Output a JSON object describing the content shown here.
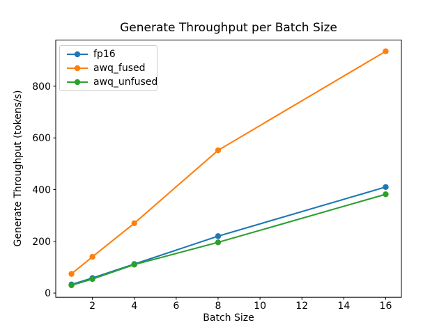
{
  "chart_data": {
    "type": "line",
    "title": "Generate Throughput per Batch Size",
    "xlabel": "Batch Size",
    "ylabel": "Generate Throughput (tokens/s)",
    "x": [
      1,
      2,
      4,
      8,
      16
    ],
    "series": [
      {
        "name": "fp16",
        "color": "#1f77b4",
        "values": [
          33,
          58,
          112,
          220,
          410
        ]
      },
      {
        "name": "awq_fused",
        "color": "#ff7f0e",
        "values": [
          74,
          140,
          270,
          552,
          935
        ]
      },
      {
        "name": "awq_unfused",
        "color": "#2ca02c",
        "values": [
          30,
          54,
          110,
          196,
          382
        ]
      }
    ],
    "xticks": [
      2,
      4,
      6,
      8,
      10,
      12,
      14,
      16
    ],
    "yticks": [
      0,
      200,
      400,
      600,
      800
    ],
    "xlim": [
      0.25,
      16.75
    ],
    "ylim": [
      -16.4,
      978.4
    ],
    "grid": false,
    "legend_position": "upper left",
    "marker": "circle",
    "axis_color": "#000000"
  }
}
